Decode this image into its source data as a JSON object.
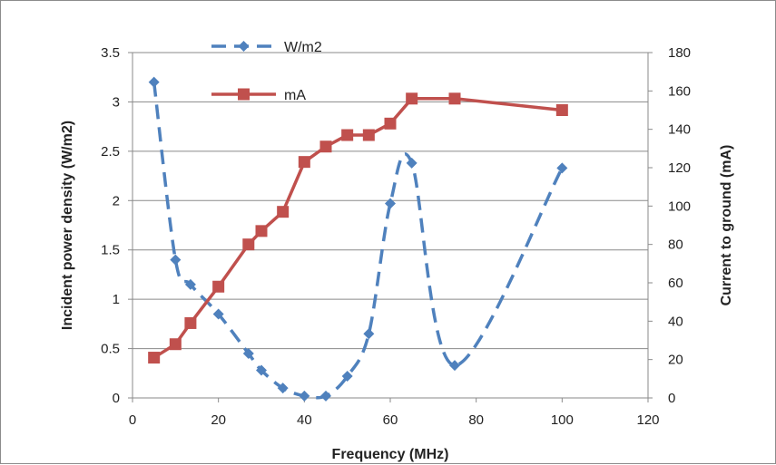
{
  "chart_data": {
    "type": "line",
    "xlabel": "Frequency (MHz)",
    "ylabel_left": "Incident power density (W/m2)",
    "ylabel_right": "Current to ground (mA)",
    "xlim": [
      0,
      120
    ],
    "ylim_left": [
      0,
      3.5
    ],
    "ylim_right": [
      0,
      180
    ],
    "x_ticks": [
      "0",
      "20",
      "40",
      "60",
      "80",
      "100",
      "120"
    ],
    "y_left_ticks": [
      "0",
      "0.5",
      "1",
      "1.5",
      "2",
      "2.5",
      "3",
      "3.5"
    ],
    "y_right_ticks": [
      "0",
      "20",
      "40",
      "60",
      "80",
      "100",
      "120",
      "140",
      "160",
      "180"
    ],
    "grid": "horizontal",
    "legend_position": "top-left",
    "series": [
      {
        "name": "W/m2",
        "axis": "left",
        "color": "#4f81bd",
        "marker": "diamond",
        "line_style": "dashed-smooth",
        "x": [
          5,
          10,
          13.5,
          20,
          27,
          30,
          35,
          40,
          45,
          50,
          55,
          60,
          65,
          75,
          100
        ],
        "y": [
          3.2,
          1.4,
          1.15,
          0.85,
          0.45,
          0.28,
          0.1,
          0.02,
          0.02,
          0.22,
          0.65,
          1.97,
          2.38,
          0.33,
          2.33
        ]
      },
      {
        "name": "mA",
        "axis": "right",
        "color": "#c0504d",
        "marker": "square",
        "line_style": "solid",
        "x": [
          5,
          10,
          13.5,
          20,
          27,
          30,
          35,
          40,
          45,
          50,
          55,
          60,
          65,
          75,
          100
        ],
        "y": [
          21,
          28,
          39,
          58,
          80,
          87,
          97,
          123,
          131,
          137,
          137,
          143,
          156,
          156,
          150
        ]
      }
    ]
  }
}
